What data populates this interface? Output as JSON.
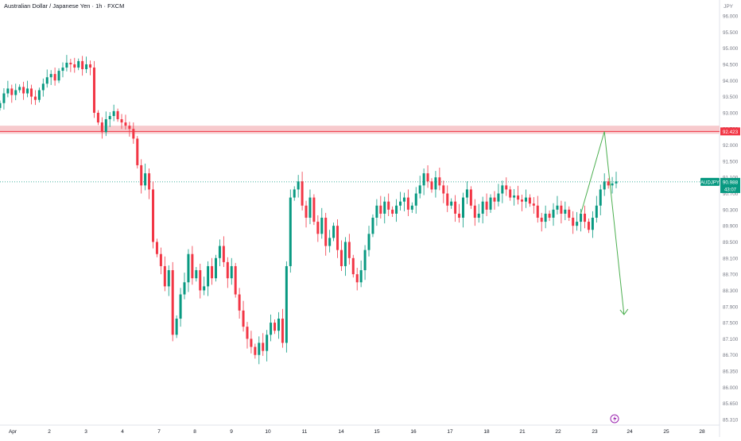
{
  "header": {
    "title": "Australian Dollar / Japanese Yen · 1h · FXCM",
    "currency": "JPY"
  },
  "chart_data": {
    "type": "candlestick",
    "symbol": "AUDJPY",
    "ylim": [
      85.31,
      96.0
    ],
    "y_ticks": [
      "96.000",
      "95.500",
      "95.000",
      "94.500",
      "94.000",
      "93.500",
      "93.000",
      "92.500",
      "92.000",
      "91.500",
      "91.100",
      "90.700",
      "90.300",
      "89.900",
      "89.500",
      "89.100",
      "88.700",
      "88.300",
      "87.900",
      "87.500",
      "87.100",
      "86.700",
      "86.350",
      "86.000",
      "85.650",
      "85.310"
    ],
    "x_ticks": [
      {
        "label": "Apr",
        "index": 0
      },
      {
        "label": "2",
        "index": 14
      },
      {
        "label": "3",
        "index": 24
      },
      {
        "label": "4",
        "index": 34
      },
      {
        "label": "7",
        "index": 44
      },
      {
        "label": "8",
        "index": 54
      },
      {
        "label": "9",
        "index": 64
      },
      {
        "label": "10",
        "index": 74
      },
      {
        "label": "11",
        "index": 84
      },
      {
        "label": "14",
        "index": 94
      },
      {
        "label": "15",
        "index": 104
      },
      {
        "label": "16",
        "index": 114
      },
      {
        "label": "17",
        "index": 124
      },
      {
        "label": "18",
        "index": 134
      },
      {
        "label": "21",
        "index": 144
      },
      {
        "label": "22",
        "index": 154
      },
      {
        "label": "23",
        "index": 164
      },
      {
        "label": "24",
        "index": 174
      },
      {
        "label": "25",
        "index": 184
      },
      {
        "label": "28",
        "index": 194
      }
    ],
    "close_path": [
      [
        0,
        93.3
      ],
      [
        1,
        93.6
      ],
      [
        2,
        93.75
      ],
      [
        3,
        93.55
      ],
      [
        4,
        93.7
      ],
      [
        5,
        93.8
      ],
      [
        6,
        93.6
      ],
      [
        7,
        93.75
      ],
      [
        8,
        93.5
      ],
      [
        9,
        93.4
      ],
      [
        10,
        93.7
      ],
      [
        11,
        93.9
      ],
      [
        12,
        94.1
      ],
      [
        13,
        94.2
      ],
      [
        14,
        94.0
      ],
      [
        15,
        94.3
      ],
      [
        16,
        94.4
      ],
      [
        17,
        94.55
      ],
      [
        18,
        94.5
      ],
      [
        19,
        94.4
      ],
      [
        20,
        94.6
      ],
      [
        21,
        94.35
      ],
      [
        22,
        94.5
      ],
      [
        23,
        94.4
      ],
      [
        24,
        93.0
      ],
      [
        25,
        92.7
      ],
      [
        26,
        92.4
      ],
      [
        27,
        92.8
      ],
      [
        28,
        92.9
      ],
      [
        29,
        93.05
      ],
      [
        30,
        92.8
      ],
      [
        31,
        92.7
      ],
      [
        32,
        92.6
      ],
      [
        33,
        92.5
      ],
      [
        34,
        92.2
      ],
      [
        35,
        91.4
      ],
      [
        36,
        90.9
      ],
      [
        37,
        91.2
      ],
      [
        38,
        90.8
      ],
      [
        39,
        89.5
      ],
      [
        40,
        89.2
      ],
      [
        41,
        88.9
      ],
      [
        42,
        88.4
      ],
      [
        43,
        88.8
      ],
      [
        44,
        87.2
      ],
      [
        45,
        87.6
      ],
      [
        46,
        88.2
      ],
      [
        47,
        88.5
      ],
      [
        48,
        89.2
      ],
      [
        49,
        88.6
      ],
      [
        50,
        88.8
      ],
      [
        51,
        88.3
      ],
      [
        52,
        88.4
      ],
      [
        53,
        88.9
      ],
      [
        54,
        88.6
      ],
      [
        55,
        89.1
      ],
      [
        56,
        89.4
      ],
      [
        57,
        89.0
      ],
      [
        58,
        88.6
      ],
      [
        59,
        88.9
      ],
      [
        60,
        88.2
      ],
      [
        61,
        87.8
      ],
      [
        62,
        87.4
      ],
      [
        63,
        87.1
      ],
      [
        64,
        86.9
      ],
      [
        65,
        86.7
      ],
      [
        66,
        87.0
      ],
      [
        67,
        86.8
      ],
      [
        68,
        87.2
      ],
      [
        69,
        87.5
      ],
      [
        70,
        87.3
      ],
      [
        71,
        87.6
      ],
      [
        72,
        87.0
      ],
      [
        73,
        88.9
      ],
      [
        74,
        90.6
      ],
      [
        75,
        90.8
      ],
      [
        76,
        91.0
      ],
      [
        77,
        90.4
      ],
      [
        78,
        90.1
      ],
      [
        79,
        90.6
      ],
      [
        80,
        90.0
      ],
      [
        81,
        89.7
      ],
      [
        82,
        90.1
      ],
      [
        83,
        89.4
      ],
      [
        84,
        89.6
      ],
      [
        85,
        89.9
      ],
      [
        86,
        89.3
      ],
      [
        87,
        88.9
      ],
      [
        88,
        89.5
      ],
      [
        89,
        89.1
      ],
      [
        90,
        88.7
      ],
      [
        91,
        88.5
      ],
      [
        92,
        88.8
      ],
      [
        93,
        89.3
      ],
      [
        94,
        89.7
      ],
      [
        95,
        90.1
      ],
      [
        96,
        90.4
      ],
      [
        97,
        90.2
      ],
      [
        98,
        90.5
      ],
      [
        99,
        90.3
      ],
      [
        100,
        90.2
      ],
      [
        101,
        90.4
      ],
      [
        102,
        90.5
      ],
      [
        103,
        90.6
      ],
      [
        104,
        90.3
      ],
      [
        105,
        90.4
      ],
      [
        106,
        90.7
      ],
      [
        107,
        90.9
      ],
      [
        108,
        91.2
      ],
      [
        109,
        91.0
      ],
      [
        110,
        90.8
      ],
      [
        111,
        91.1
      ],
      [
        112,
        90.9
      ],
      [
        113,
        90.7
      ],
      [
        114,
        90.4
      ],
      [
        115,
        90.5
      ],
      [
        116,
        90.2
      ],
      [
        117,
        90.1
      ],
      [
        118,
        90.6
      ],
      [
        119,
        90.8
      ],
      [
        120,
        90.4
      ],
      [
        121,
        90.1
      ],
      [
        122,
        90.2
      ],
      [
        123,
        90.5
      ],
      [
        124,
        90.3
      ],
      [
        125,
        90.6
      ],
      [
        126,
        90.5
      ],
      [
        127,
        90.7
      ],
      [
        128,
        90.9
      ],
      [
        129,
        90.8
      ],
      [
        130,
        90.6
      ],
      [
        131,
        90.65
      ],
      [
        132,
        90.55
      ],
      [
        133,
        90.5
      ],
      [
        134,
        90.6
      ],
      [
        135,
        90.45
      ],
      [
        136,
        90.4
      ],
      [
        137,
        90.1
      ],
      [
        138,
        90.0
      ],
      [
        139,
        90.2
      ],
      [
        140,
        90.1
      ],
      [
        141,
        90.3
      ],
      [
        142,
        90.4
      ],
      [
        143,
        90.2
      ],
      [
        144,
        90.3
      ],
      [
        145,
        90.1
      ],
      [
        146,
        89.9
      ],
      [
        147,
        90.0
      ],
      [
        148,
        90.2
      ],
      [
        149,
        90.0
      ],
      [
        150,
        89.8
      ],
      [
        151,
        90.1
      ],
      [
        152,
        90.4
      ],
      [
        153,
        90.8
      ],
      [
        154,
        91.0
      ],
      [
        155,
        90.9
      ],
      [
        156,
        90.95
      ],
      [
        157,
        91.0
      ]
    ],
    "resistance_zone": {
      "low": 92.35,
      "high": 92.6
    },
    "price_lines": [
      {
        "label": "92.423",
        "value": 92.423,
        "color": "#f23645"
      },
      {
        "label": "90.988",
        "value": 90.988,
        "color": "#089981",
        "tag": "AUDJPY",
        "countdown": "43:07"
      }
    ],
    "projection_path": [
      [
        148,
        90.2
      ],
      [
        154,
        92.42
      ],
      [
        159,
        87.7
      ]
    ],
    "colors": {
      "up": "#089981",
      "down": "#f23645",
      "projection": "#4caf50",
      "zone": "#f6c1c4"
    }
  }
}
